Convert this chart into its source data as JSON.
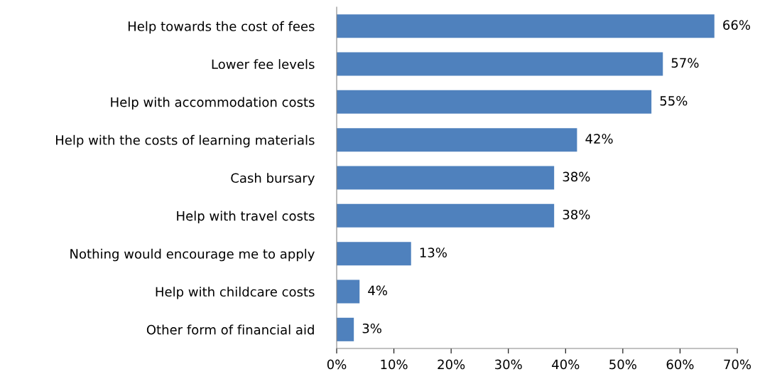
{
  "chart_data": {
    "type": "bar",
    "orientation": "horizontal",
    "categories": [
      "Help towards the cost of fees",
      "Lower fee levels",
      "Help with accommodation costs",
      "Help with the costs of learning materials",
      "Cash bursary",
      "Help with travel costs",
      "Nothing would encourage me to apply",
      "Help with childcare costs",
      "Other form of financial aid"
    ],
    "values": [
      66,
      57,
      55,
      42,
      38,
      38,
      13,
      4,
      3
    ],
    "value_labels": [
      "66%",
      "57%",
      "55%",
      "42%",
      "38%",
      "38%",
      "13%",
      "4%",
      "3%"
    ],
    "color": "#4f81bd",
    "xlim": [
      0,
      70
    ],
    "xticks": [
      {
        "value": 0,
        "label": "0%"
      },
      {
        "value": 10,
        "label": "10%"
      },
      {
        "value": 20,
        "label": "20%"
      },
      {
        "value": 30,
        "label": "30%"
      },
      {
        "value": 40,
        "label": "40%"
      },
      {
        "value": 50,
        "label": "50%"
      },
      {
        "value": 60,
        "label": "60%"
      },
      {
        "value": 70,
        "label": "70%"
      }
    ],
    "grid": false,
    "legend": false
  }
}
